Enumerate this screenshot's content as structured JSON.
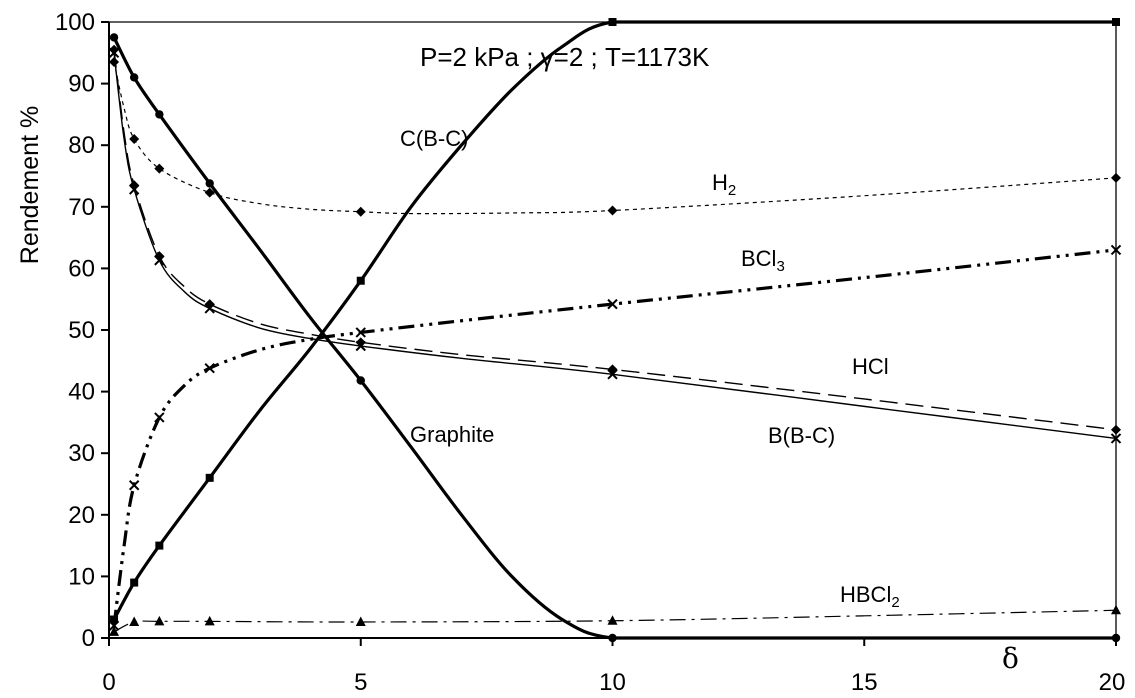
{
  "chart_data": {
    "type": "line",
    "title": "P=2 kPa ; γ=2 ; T=1173K",
    "xlabel": "δ",
    "ylabel": "Rendement %",
    "xlim": [
      0,
      20
    ],
    "ylim": [
      0,
      100
    ],
    "x_ticks": [
      0,
      5,
      10,
      15,
      20
    ],
    "y_ticks": [
      0,
      10,
      20,
      30,
      40,
      50,
      60,
      70,
      80,
      90,
      100
    ],
    "grid": false,
    "series": [
      {
        "name": "C(B-C)",
        "label_parts": [
          "C(B-C)"
        ],
        "marker": "square",
        "style": "thick-solid",
        "x": [
          0.1,
          0.5,
          1,
          2,
          5,
          10,
          20
        ],
        "y": [
          3,
          9,
          15,
          26,
          58,
          100,
          100
        ],
        "curve_x": [
          0.1,
          0.5,
          1,
          2,
          3,
          4,
          5,
          6,
          7,
          8,
          9,
          10,
          12,
          15,
          18,
          20
        ],
        "curve_y": [
          3,
          9,
          15,
          26,
          37,
          47,
          58,
          70,
          80,
          89,
          96,
          100,
          100,
          100,
          100,
          100
        ]
      },
      {
        "name": "Graphite",
        "label_parts": [
          "Graphite"
        ],
        "marker": "circle",
        "style": "thick-solid",
        "x": [
          0.1,
          0.5,
          1,
          2,
          5,
          10,
          20
        ],
        "y": [
          97.5,
          91,
          85,
          73.8,
          41.8,
          0,
          0
        ],
        "curve_x": [
          0.1,
          0.5,
          1,
          2,
          3,
          4,
          5,
          6,
          7,
          8,
          9,
          10,
          12,
          15,
          18,
          20
        ],
        "curve_y": [
          97.5,
          91,
          85,
          73.8,
          63,
          52,
          41.8,
          31,
          20,
          10,
          3,
          0,
          0,
          0,
          0,
          0
        ]
      },
      {
        "name": "H2",
        "label_parts": [
          "H",
          "2"
        ],
        "marker": "diamond",
        "style": "short-dash",
        "x": [
          0.1,
          0.5,
          1,
          2,
          5,
          10,
          20
        ],
        "y": [
          93.5,
          81,
          76.2,
          72.3,
          69.2,
          69.4,
          74.7
        ],
        "curve_x": [
          0.1,
          0.3,
          0.5,
          1,
          2,
          3,
          4,
          5,
          6,
          8,
          10,
          15,
          20
        ],
        "curve_y": [
          93.5,
          86,
          81,
          76.2,
          72.3,
          70.5,
          69.6,
          69.2,
          68.9,
          69.0,
          69.4,
          71.8,
          74.7
        ]
      },
      {
        "name": "BCl3",
        "label_parts": [
          "BCl",
          "3"
        ],
        "marker": "x",
        "style": "dash-dot-thick",
        "x": [
          0.1,
          0.5,
          1,
          2,
          5,
          10,
          20
        ],
        "y": [
          2,
          24.8,
          35.8,
          43.8,
          49.6,
          54.2,
          63
        ],
        "curve_x": [
          0.1,
          0.3,
          0.5,
          1,
          1.5,
          2,
          3,
          4,
          5,
          7,
          10,
          15,
          20
        ],
        "curve_y": [
          2,
          15,
          24.8,
          35.8,
          41,
          43.8,
          46.8,
          48.5,
          49.6,
          51.5,
          54.2,
          58.5,
          63
        ]
      },
      {
        "name": "HCl",
        "label_parts": [
          "HCl"
        ],
        "marker": "diamond",
        "style": "long-dash",
        "x": [
          0.1,
          0.5,
          1,
          2,
          5,
          10,
          20
        ],
        "y": [
          95.5,
          73.5,
          62,
          54.2,
          48,
          43.6,
          33.8
        ],
        "curve_x": [
          0.1,
          0.3,
          0.5,
          1,
          1.5,
          2,
          3,
          4,
          5,
          7,
          10,
          15,
          20
        ],
        "curve_y": [
          95.5,
          82,
          73.5,
          62,
          57,
          54.2,
          51,
          49.3,
          48,
          46,
          43.6,
          38.8,
          33.8
        ]
      },
      {
        "name": "B(B-C)",
        "label_parts": [
          "B(B-C)"
        ],
        "marker": "x",
        "style": "thin-solid",
        "x": [
          0.1,
          0.5,
          1,
          2,
          5,
          10,
          20
        ],
        "y": [
          95,
          72.8,
          61.3,
          53.5,
          47.4,
          42.8,
          32.4
        ],
        "curve_x": [
          0.1,
          0.3,
          0.5,
          1,
          1.5,
          2,
          3,
          4,
          5,
          7,
          10,
          15,
          20
        ],
        "curve_y": [
          95,
          81,
          72.8,
          61.3,
          56.2,
          53.5,
          50.3,
          48.6,
          47.4,
          45.4,
          42.8,
          37.6,
          32.4
        ]
      },
      {
        "name": "HBCl2",
        "label_parts": [
          "HBCl",
          "2"
        ],
        "marker": "triangle",
        "style": "dash-dot-thin",
        "x": [
          0.1,
          0.5,
          1,
          2,
          5,
          10,
          20
        ],
        "y": [
          1,
          2.6,
          2.7,
          2.7,
          2.6,
          2.8,
          4.5
        ],
        "curve_x": [
          0.1,
          0.5,
          1,
          2,
          5,
          10,
          15,
          20
        ],
        "curve_y": [
          1,
          2.6,
          2.7,
          2.7,
          2.6,
          2.8,
          3.6,
          4.5
        ]
      }
    ]
  }
}
